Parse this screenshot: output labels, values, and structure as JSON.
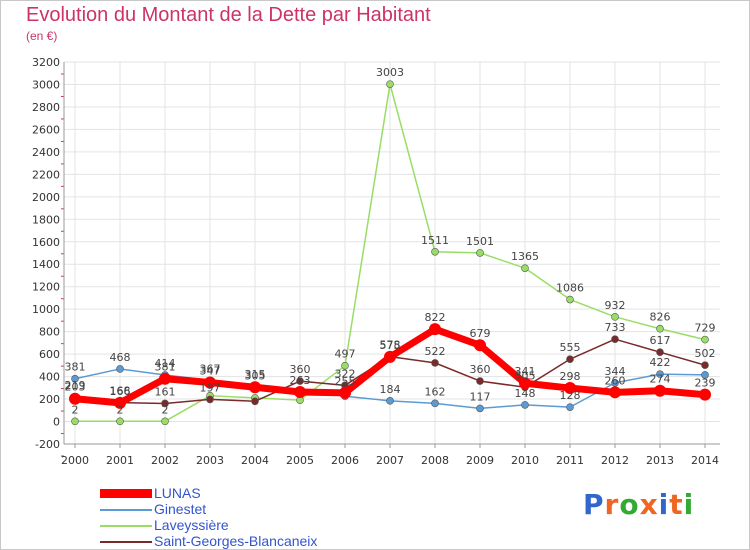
{
  "page": {
    "title": "Evolution du Montant de la Dette par Habitant",
    "subtitle": "(en €)"
  },
  "logo": {
    "text": "Proxiti",
    "colors": [
      "#3366cc",
      "#ee6622",
      "#33aa33",
      "#ee6622",
      "#3366cc",
      "#ee6622",
      "#33aa33"
    ]
  },
  "chart_data": {
    "type": "line",
    "x": [
      "2000",
      "2001",
      "2002",
      "2003",
      "2004",
      "2005",
      "2006",
      "2007",
      "2008",
      "2009",
      "2010",
      "2011",
      "2012",
      "2013",
      "2014"
    ],
    "ylim": [
      -200,
      3200
    ],
    "yticks": [
      -200,
      0,
      200,
      400,
      600,
      800,
      1000,
      1200,
      1400,
      1600,
      1800,
      2000,
      2200,
      2400,
      2600,
      2800,
      3000,
      3200
    ],
    "grid": true,
    "legend_position": "bottom-left",
    "series": [
      {
        "name": "Ginestet",
        "color": "#5b9bd5",
        "values": [
          381,
          468,
          414,
          367,
          315,
          280,
          225,
          184,
          162,
          117,
          148,
          128,
          344,
          422,
          415
        ],
        "labels": [
          "381",
          "468",
          "414",
          "367",
          "315",
          "",
          "",
          "184",
          "162",
          "117",
          "148",
          "128",
          "344",
          "422",
          ""
        ]
      },
      {
        "name": "Laveyssière",
        "color": "#99dd66",
        "values": [
          2,
          2,
          2,
          230,
          210,
          190,
          497,
          3003,
          1511,
          1501,
          1365,
          1086,
          932,
          826,
          729
        ],
        "labels": [
          "2",
          "2",
          "2",
          "",
          "",
          "",
          "497",
          "3003",
          "1511",
          "1501",
          "1365",
          "1086",
          "932",
          "826",
          "729"
        ]
      },
      {
        "name": "Saint-Georges-Blancaneix",
        "color": "#7a2a2a",
        "values": [
          219,
          168,
          161,
          197,
          180,
          360,
          322,
          578,
          522,
          360,
          305,
          555,
          733,
          617,
          502
        ],
        "labels": [
          "219",
          "168",
          "161",
          "197",
          "",
          "360",
          "322",
          "578",
          "522",
          "360",
          "305",
          "555",
          "733",
          "617",
          "502"
        ]
      },
      {
        "name": "LUNAS",
        "color": "#ff0000",
        "values": [
          203,
          166,
          381,
          347,
          305,
          263,
          255,
          575,
          822,
          679,
          341,
          298,
          260,
          274,
          239
        ],
        "labels": [
          "203",
          "166",
          "381",
          "347",
          "305",
          "263",
          "255",
          "575",
          "822",
          "679",
          "341",
          "298",
          "260",
          "274",
          "239"
        ]
      }
    ],
    "legend": [
      {
        "name": "LUNAS",
        "color": "#ff0000",
        "thick": true
      },
      {
        "name": "Ginestet",
        "color": "#5b9bd5",
        "thick": false
      },
      {
        "name": "Laveyssière",
        "color": "#99dd66",
        "thick": false
      },
      {
        "name": "Saint-Georges-Blancaneix",
        "color": "#7a2a2a",
        "thick": false
      }
    ]
  }
}
